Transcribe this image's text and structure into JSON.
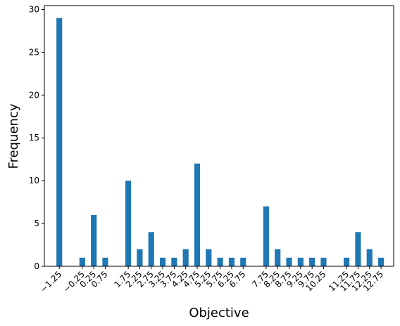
{
  "chart_data": {
    "type": "bar",
    "title": "",
    "xlabel": "Objective",
    "ylabel": "Frequency",
    "categories": [
      "−1.25",
      "−0.25",
      "0.25",
      "0.75",
      "1.75",
      "2.25",
      "2.75",
      "3.25",
      "3.75",
      "4.25",
      "4.75",
      "5.25",
      "5.75",
      "6.25",
      "6.75",
      "7.75",
      "8.25",
      "8.75",
      "9.25",
      "9.75",
      "10.25",
      "11.25",
      "11.75",
      "12.25",
      "12.75"
    ],
    "x": [
      -1.25,
      -0.25,
      0.25,
      0.75,
      1.75,
      2.25,
      2.75,
      3.25,
      3.75,
      4.25,
      4.75,
      5.25,
      5.75,
      6.25,
      6.75,
      7.75,
      8.25,
      8.75,
      9.25,
      9.75,
      10.25,
      11.25,
      11.75,
      12.25,
      12.75
    ],
    "values": [
      29,
      1,
      6,
      1,
      10,
      2,
      4,
      1,
      1,
      2,
      12,
      2,
      1,
      1,
      1,
      7,
      2,
      1,
      1,
      1,
      1,
      1,
      4,
      2,
      1
    ],
    "ylim": [
      0,
      30.45
    ],
    "xlim": [
      -1.9,
      13.3
    ],
    "yticks": [
      0,
      5,
      10,
      15,
      20,
      25,
      30
    ],
    "bar_color": "#1f77b4",
    "grid": false
  }
}
